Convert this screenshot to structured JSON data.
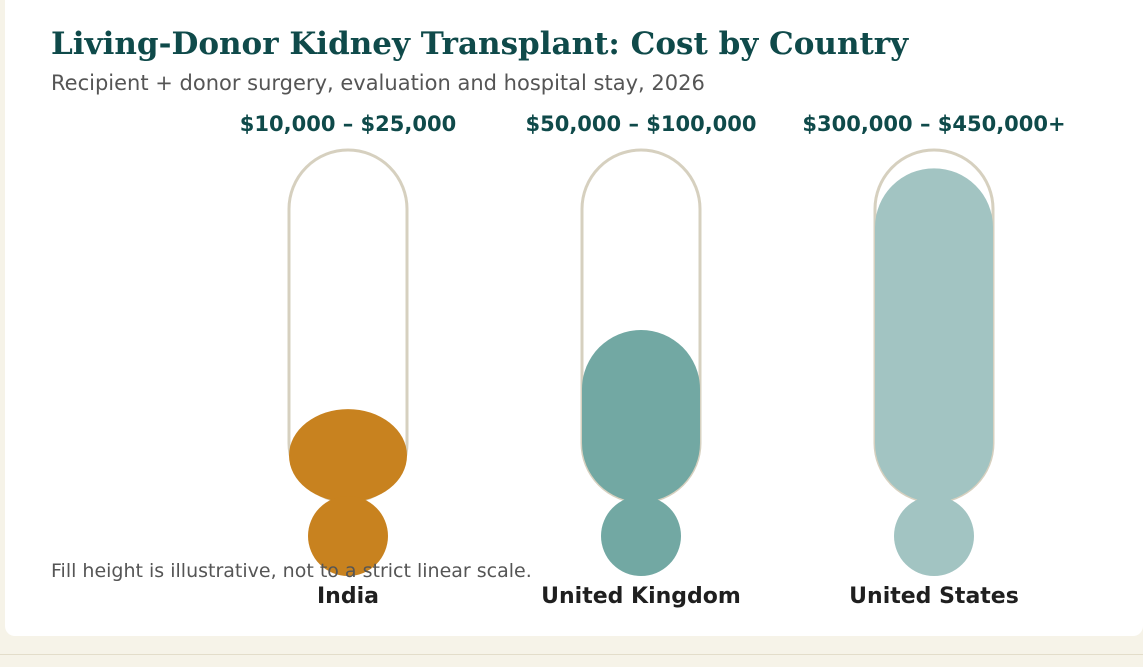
{
  "title": "Living-Donor Kidney Transplant: Cost by Country",
  "subtitle": "Recipient + donor surgery, evaluation and hospital stay, 2026",
  "note": "Fill height is illustrative, not to a strict linear scale.",
  "colors": {
    "background": "#f6f3e8",
    "card": "#ffffff",
    "title": "#0f4a4a",
    "outline": "#d6d0bf",
    "india": "#c8821f",
    "united_kingdom": "#72a8a3",
    "united_states": "#a2c4c2"
  },
  "chart_data": {
    "type": "bar",
    "title": "Living-Donor Kidney Transplant: Cost by Country",
    "subtitle": "Recipient + donor surgery, evaluation and hospital stay, 2026",
    "categories": [
      "India",
      "United Kingdom",
      "United States"
    ],
    "cost_labels": [
      "$10,000 – $25,000",
      "$50,000 – $100,000",
      "$300,000 – $450,000+"
    ],
    "ranges_usd": [
      [
        10000,
        25000
      ],
      [
        50000,
        100000
      ],
      [
        300000,
        450000
      ]
    ],
    "fill_levels": [
      0.27,
      0.5,
      0.97
    ],
    "colors": [
      "#c8821f",
      "#72a8a3",
      "#a2c4c2"
    ],
    "legend": "none",
    "grid": false,
    "note": "Fill height is illustrative, not to a strict linear scale."
  }
}
